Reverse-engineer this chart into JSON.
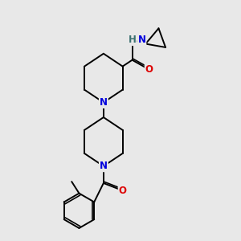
{
  "background_color": "#e8e8e8",
  "atom_colors": {
    "N": "#0000dd",
    "O": "#dd0000",
    "C": "#000000",
    "H": "#3a7070"
  },
  "bond_color": "#000000",
  "lw": 1.4
}
